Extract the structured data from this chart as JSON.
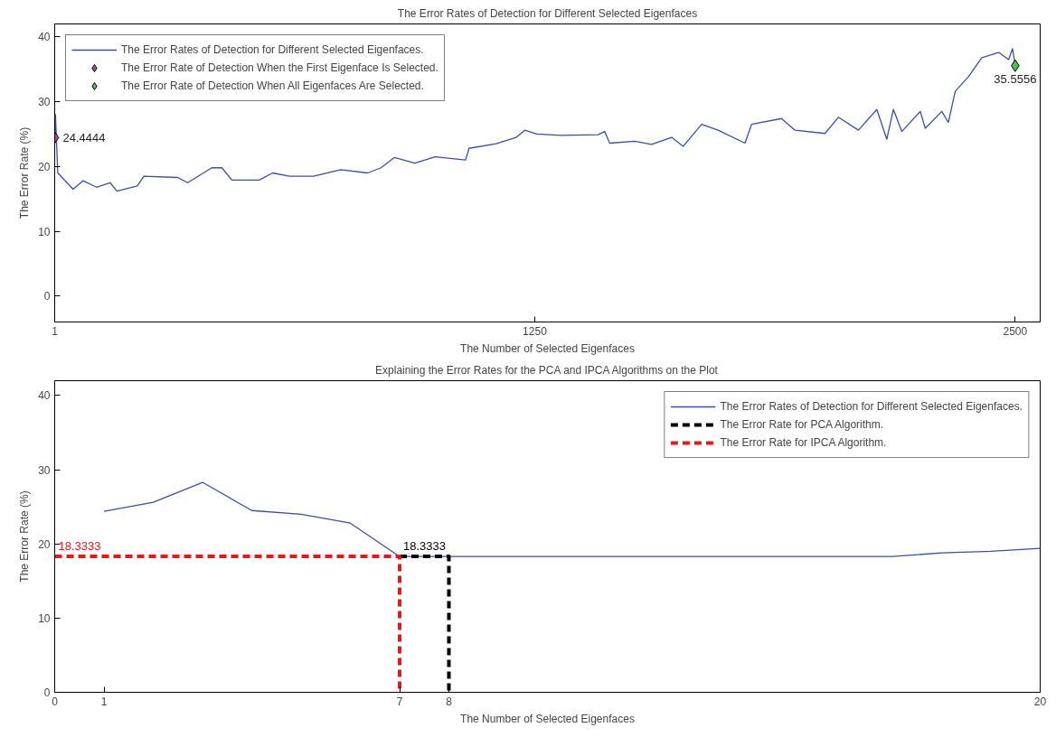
{
  "chart_data": [
    {
      "type": "line",
      "title": "The Error Rates of Detection for Different Selected Eigenfaces",
      "xlabel": "The Number of Selected Eigenfaces",
      "ylabel": "The Error Rate (%)",
      "xlim": [
        1,
        2565
      ],
      "xticks": [
        1,
        1250,
        2500
      ],
      "ylim": [
        -4,
        42
      ],
      "yticks": [
        0,
        10,
        20,
        30,
        40
      ],
      "legend": "top left",
      "series": [
        {
          "name": "The Error Rates of Detection for Different Selected Eigenfaces.",
          "color": "#3a4fa8",
          "x": [
            1,
            3,
            9,
            49,
            75,
            110,
            145,
            163,
            216,
            233,
            321,
            347,
            410,
            436,
            462,
            533,
            568,
            612,
            674,
            745,
            815,
            850,
            885,
            938,
            991,
            1070,
            1079,
            1149,
            1202,
            1224,
            1255,
            1319,
            1415,
            1432,
            1445,
            1510,
            1554,
            1606,
            1636,
            1684,
            1727,
            1797,
            1814,
            1892,
            1927,
            2005,
            2040,
            2092,
            2140,
            2166,
            2183,
            2205,
            2253,
            2266,
            2309,
            2326,
            2344,
            2379,
            2413,
            2457,
            2483,
            2493,
            2500
          ],
          "values": [
            24.4,
            28,
            19,
            16.5,
            17.8,
            16.8,
            17.5,
            16.2,
            17,
            18.5,
            18.3,
            17.5,
            19.8,
            19.8,
            17.9,
            17.9,
            19,
            18.5,
            18.5,
            19.5,
            19,
            19.8,
            21.4,
            20.5,
            21.5,
            21,
            22.8,
            23.5,
            24.5,
            25.6,
            25,
            24.8,
            24.9,
            25.4,
            23.6,
            23.9,
            23.4,
            24.5,
            23.1,
            26.5,
            25.6,
            23.6,
            26.5,
            27.4,
            25.6,
            25.1,
            27.6,
            25.6,
            28.8,
            24.2,
            28.8,
            25.4,
            28.5,
            25.9,
            28.5,
            26.8,
            31.6,
            33.9,
            36.8,
            37.6,
            36.5,
            38.2,
            35.6
          ]
        },
        {
          "name": "The Error Rate of Detection When the First Eigenface Is Selected.",
          "type": "scatter",
          "marker": "diamond",
          "color": "#b04a9e",
          "x": [
            1
          ],
          "values": [
            24.4444
          ],
          "value_labels": [
            "24.4444"
          ]
        },
        {
          "name": "The Error Rate of Detection When All Eigenfaces Are Selected.",
          "type": "scatter",
          "marker": "diamond",
          "color": "#4cbf4c",
          "x": [
            2500
          ],
          "values": [
            35.5556
          ],
          "value_labels": [
            "35.5556"
          ]
        }
      ]
    },
    {
      "type": "line",
      "title": "Explaining the Error Rates for the PCA and IPCA Algorithms on the Plot",
      "xlabel": "The Number of Selected Eigenfaces",
      "ylabel": "The Error Rate (%)",
      "xlim": [
        0,
        20
      ],
      "xticks": [
        0,
        1,
        7,
        8,
        20
      ],
      "ylim": [
        0,
        42
      ],
      "yticks": [
        0,
        10,
        20,
        30,
        40
      ],
      "legend": "top right",
      "series": [
        {
          "name": "The Error Rates of Detection for Different Selected Eigenfaces.",
          "color": "#3a4fa8",
          "x": [
            1,
            2,
            3,
            4,
            5,
            6,
            7,
            8,
            9,
            10,
            11,
            12,
            13,
            14,
            15,
            16,
            17,
            18,
            19,
            20
          ],
          "values": [
            24.4,
            25.6,
            28.3,
            24.5,
            24,
            22.8,
            18.3,
            18.3,
            18.3,
            18.3,
            18.3,
            18.3,
            18.3,
            18.3,
            18.3,
            18.3,
            18.3,
            18.8,
            19,
            19.4
          ]
        },
        {
          "name": "The Error Rate for PCA Algorithm.",
          "line_style": "dashed",
          "color": "#000000",
          "x": [
            7,
            8,
            8
          ],
          "values": [
            18.3333,
            18.3333,
            0
          ],
          "value_labels": [
            "18.3333",
            null,
            null
          ]
        },
        {
          "name": "The Error Rate for IPCA Algorithm.",
          "line_style": "dashed",
          "color": "#e31a1c",
          "x": [
            0,
            7,
            7
          ],
          "values": [
            18.3333,
            18.3333,
            0
          ],
          "value_labels": [
            "18.3333",
            null,
            null
          ]
        }
      ]
    }
  ]
}
